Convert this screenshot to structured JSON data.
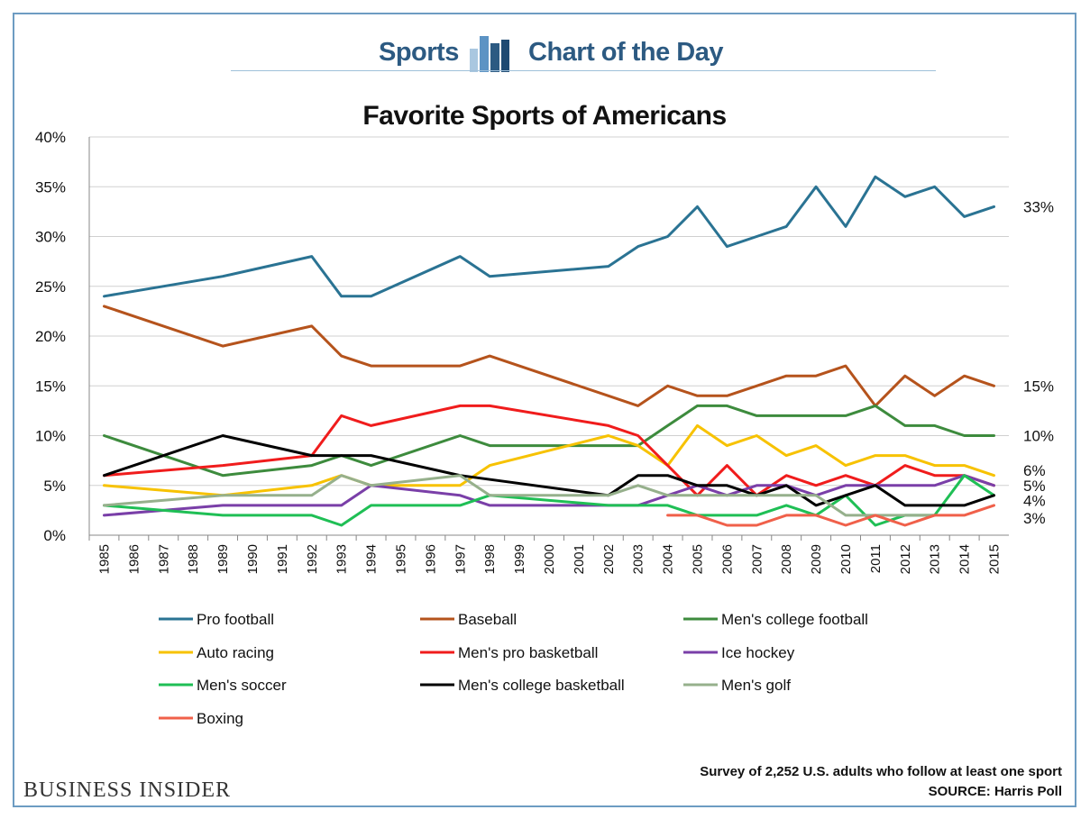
{
  "header": {
    "left": "Sports",
    "right": "Chart of the Day"
  },
  "footer": {
    "brand": "BUSINESS INSIDER",
    "note": "Survey of 2,252 U.S. adults who follow at least one sport",
    "source": "SOURCE: Harris Poll"
  },
  "chart_data": {
    "type": "line",
    "title": "Favorite Sports of Americans",
    "x": [
      1985,
      1986,
      1987,
      1988,
      1989,
      1990,
      1991,
      1992,
      1993,
      1994,
      1995,
      1996,
      1997,
      1998,
      1999,
      2000,
      2001,
      2002,
      2003,
      2004,
      2005,
      2006,
      2007,
      2008,
      2009,
      2010,
      2011,
      2012,
      2013,
      2014,
      2015
    ],
    "ylim": [
      0,
      40
    ],
    "yticks": [
      0,
      5,
      10,
      15,
      20,
      25,
      30,
      35,
      40
    ],
    "ytick_labels": [
      "0%",
      "5%",
      "10%",
      "15%",
      "20%",
      "25%",
      "30%",
      "35%",
      "40%"
    ],
    "grid": "horizontal",
    "legend_position": "bottom",
    "series": [
      {
        "name": "Pro football",
        "color": "#2a7393",
        "values": [
          24,
          null,
          null,
          null,
          26,
          null,
          null,
          28,
          24,
          24,
          null,
          null,
          28,
          26,
          null,
          null,
          null,
          27,
          29,
          30,
          33,
          29,
          30,
          31,
          35,
          31,
          36,
          34,
          35,
          32,
          33
        ]
      },
      {
        "name": "Baseball",
        "color": "#b5531c",
        "values": [
          23,
          null,
          null,
          null,
          19,
          null,
          null,
          21,
          18,
          17,
          null,
          null,
          17,
          18,
          null,
          null,
          null,
          14,
          13,
          15,
          14,
          14,
          15,
          16,
          16,
          17,
          13,
          16,
          14,
          16,
          15
        ]
      },
      {
        "name": "Men's college football",
        "color": "#3d8b3d",
        "values": [
          10,
          null,
          null,
          null,
          6,
          null,
          null,
          7,
          8,
          7,
          null,
          null,
          10,
          9,
          null,
          null,
          null,
          9,
          9,
          11,
          13,
          13,
          12,
          12,
          12,
          12,
          13,
          11,
          11,
          10,
          10
        ]
      },
      {
        "name": "Auto racing",
        "color": "#f7c200",
        "values": [
          5,
          null,
          null,
          null,
          4,
          null,
          null,
          5,
          6,
          5,
          null,
          null,
          5,
          7,
          null,
          null,
          null,
          10,
          9,
          7,
          11,
          9,
          10,
          8,
          9,
          7,
          8,
          8,
          7,
          7,
          6
        ]
      },
      {
        "name": "Men's pro basketball",
        "color": "#f01c1c",
        "values": [
          6,
          null,
          null,
          null,
          7,
          null,
          null,
          8,
          12,
          11,
          null,
          null,
          13,
          13,
          null,
          null,
          null,
          11,
          10,
          7,
          4,
          7,
          4,
          6,
          5,
          6,
          5,
          7,
          6,
          6,
          5
        ]
      },
      {
        "name": "Ice hockey",
        "color": "#7a3fa8",
        "values": [
          2,
          null,
          null,
          null,
          3,
          null,
          null,
          3,
          3,
          5,
          null,
          null,
          4,
          3,
          null,
          null,
          null,
          3,
          3,
          4,
          5,
          4,
          5,
          5,
          4,
          5,
          5,
          5,
          5,
          6,
          5
        ]
      },
      {
        "name": "Men's soccer",
        "color": "#1fbf55",
        "values": [
          3,
          null,
          null,
          null,
          2,
          null,
          null,
          2,
          1,
          3,
          null,
          null,
          3,
          4,
          null,
          null,
          null,
          3,
          3,
          3,
          2,
          2,
          2,
          3,
          2,
          4,
          1,
          2,
          2,
          6,
          4
        ]
      },
      {
        "name": "Men's college basketball",
        "color": "#000000",
        "values": [
          6,
          null,
          null,
          null,
          10,
          null,
          null,
          8,
          8,
          8,
          null,
          null,
          6,
          null,
          null,
          null,
          null,
          4,
          6,
          6,
          5,
          5,
          4,
          5,
          3,
          4,
          5,
          3,
          3,
          3,
          4
        ]
      },
      {
        "name": "Men's golf",
        "color": "#96b08c",
        "values": [
          3,
          null,
          null,
          null,
          4,
          null,
          null,
          4,
          6,
          5,
          null,
          null,
          6,
          4,
          null,
          null,
          null,
          4,
          5,
          4,
          4,
          4,
          4,
          4,
          4,
          2,
          2,
          2,
          2,
          null,
          null
        ]
      },
      {
        "name": "Boxing",
        "color": "#f0604a",
        "values": [
          null,
          null,
          null,
          null,
          null,
          null,
          null,
          null,
          null,
          null,
          null,
          null,
          null,
          null,
          null,
          null,
          null,
          null,
          null,
          2,
          2,
          1,
          1,
          2,
          2,
          1,
          2,
          1,
          2,
          2,
          3
        ]
      }
    ],
    "end_labels": [
      "33%",
      "15%",
      "10%",
      "6%",
      "5%",
      "4%",
      "3%"
    ]
  }
}
